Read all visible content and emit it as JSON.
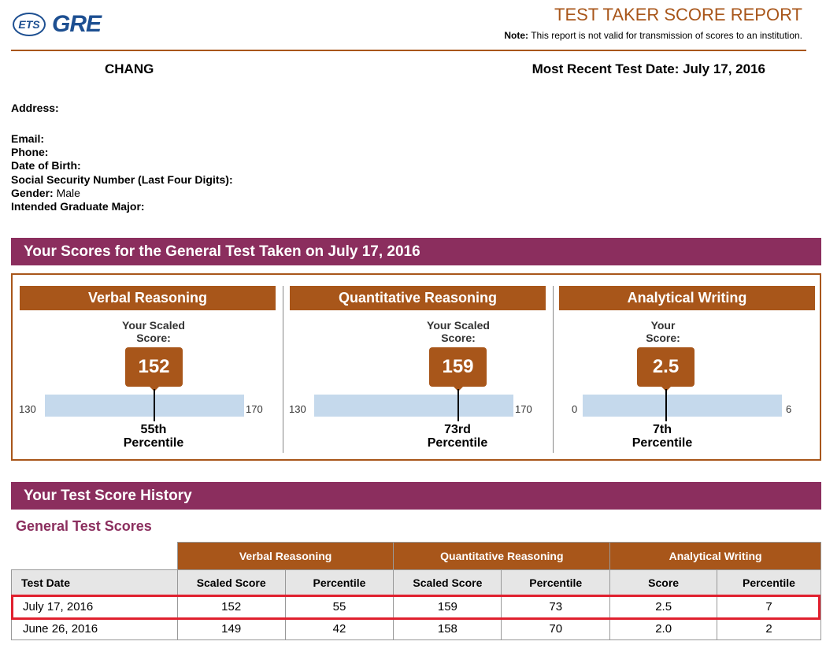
{
  "header": {
    "logo_text": "ETS",
    "product": "GRE",
    "title": "TEST TAKER SCORE REPORT",
    "note_label": "Note:",
    "note_text": "This report is not valid for transmission of scores to an institution."
  },
  "candidate": {
    "name": "CHANG",
    "recent_test_date": "Most Recent Test Date: July 17, 2016"
  },
  "info": {
    "address_label": "Address:",
    "email_label": "Email:",
    "phone_label": "Phone:",
    "dob_label": "Date of Birth:",
    "ssn_label": "Social Security Number (Last Four Digits):",
    "gender_label": "Gender:",
    "gender_value": "Male",
    "major_label": "Intended Graduate Major:"
  },
  "scores_section": {
    "title": "Your Scores for the General Test Taken on July 17, 2016",
    "panels": [
      {
        "name": "Verbal Reasoning",
        "label_line1": "Your Scaled",
        "label_line2": "Score:",
        "score": "152",
        "min": "130",
        "max": "170",
        "percentile": "55th",
        "percentile_label": "Percentile",
        "level": 0.55
      },
      {
        "name": "Quantitative Reasoning",
        "label_line1": "Your Scaled",
        "label_line2": "Score:",
        "score": "159",
        "min": "130",
        "max": "170",
        "percentile": "73rd",
        "percentile_label": "Percentile",
        "level": 0.725
      },
      {
        "name": "Analytical Writing",
        "label_line1": "Your",
        "label_line2": "Score:",
        "score": "2.5",
        "min": "0",
        "max": "6",
        "percentile": "7th",
        "percentile_label": "Percentile",
        "level": 0.416
      }
    ]
  },
  "history": {
    "title": "Your Test Score History",
    "subtitle": "General Test Scores",
    "groups": [
      "Verbal Reasoning",
      "Quantitative Reasoning",
      "Analytical Writing"
    ],
    "columns": [
      "Test Date",
      "Scaled Score",
      "Percentile",
      "Scaled Score",
      "Percentile",
      "Score",
      "Percentile"
    ],
    "rows": [
      [
        "July 17, 2016",
        "152",
        "55",
        "159",
        "73",
        "2.5",
        "7"
      ],
      [
        "June 26, 2016",
        "149",
        "42",
        "158",
        "70",
        "2.0",
        "2"
      ]
    ]
  },
  "colors": {
    "accent_brown": "#a8561a",
    "section_purple": "#8b2e5e",
    "scale_blue": "#c5d9ec",
    "highlight_red": "#e0202e",
    "logo_blue": "#1d4f91"
  }
}
